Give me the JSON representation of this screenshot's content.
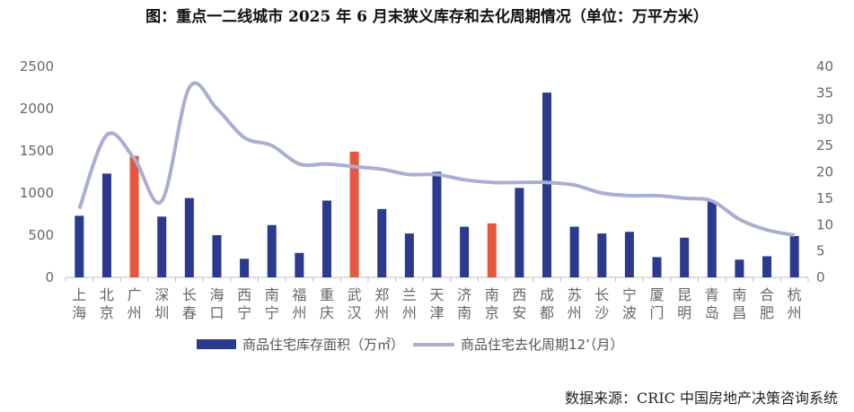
{
  "title": "图：重点一二线城市 2025 年 6 月末狭义库存和去化周期情况（单位：万平方米）",
  "source": "数据来源：CRIC 中国房地产决策咨询系统",
  "colors": {
    "bar": "#2b3a8c",
    "highlight": "#e5573f",
    "line": "#a9aed3",
    "axis": "#bdbdbd"
  },
  "chart_data": {
    "type": "bar",
    "categories": [
      "上海",
      "北京",
      "广州",
      "深圳",
      "长春",
      "海口",
      "西宁",
      "南宁",
      "福州",
      "重庆",
      "武汉",
      "郑州",
      "兰州",
      "天津",
      "济南",
      "南京",
      "西安",
      "成都",
      "苏州",
      "长沙",
      "宁波",
      "厦门",
      "昆明",
      "青岛",
      "南昌",
      "合肥",
      "杭州"
    ],
    "highlight_categories": [
      "广州",
      "武汉",
      "南京"
    ],
    "y_left": {
      "ticks": [
        0,
        500,
        1000,
        1500,
        2000,
        2500
      ],
      "lim": [
        0,
        2500
      ]
    },
    "y_right": {
      "ticks": [
        0,
        5,
        10,
        15,
        20,
        25,
        30,
        35,
        40
      ],
      "lim": [
        0,
        40
      ]
    },
    "series": [
      {
        "name": "商品住宅库存面积（万㎡）",
        "type": "bar",
        "axis": "left",
        "values": [
          730,
          1230,
          1440,
          720,
          940,
          500,
          220,
          620,
          290,
          910,
          1490,
          810,
          520,
          1250,
          600,
          640,
          1060,
          2190,
          600,
          520,
          540,
          240,
          470,
          900,
          210,
          250,
          490
        ]
      },
      {
        "name": "商品住宅去化周期12’（月）",
        "type": "line",
        "axis": "right",
        "values": [
          13,
          27,
          22.5,
          14.5,
          36,
          32,
          26.5,
          25,
          21.5,
          21.5,
          21,
          20.5,
          19.5,
          19.5,
          18.5,
          18,
          18,
          18,
          17.5,
          16,
          15.5,
          15.5,
          15,
          14.5,
          11,
          9,
          8
        ]
      }
    ],
    "legend_position": "bottom"
  }
}
